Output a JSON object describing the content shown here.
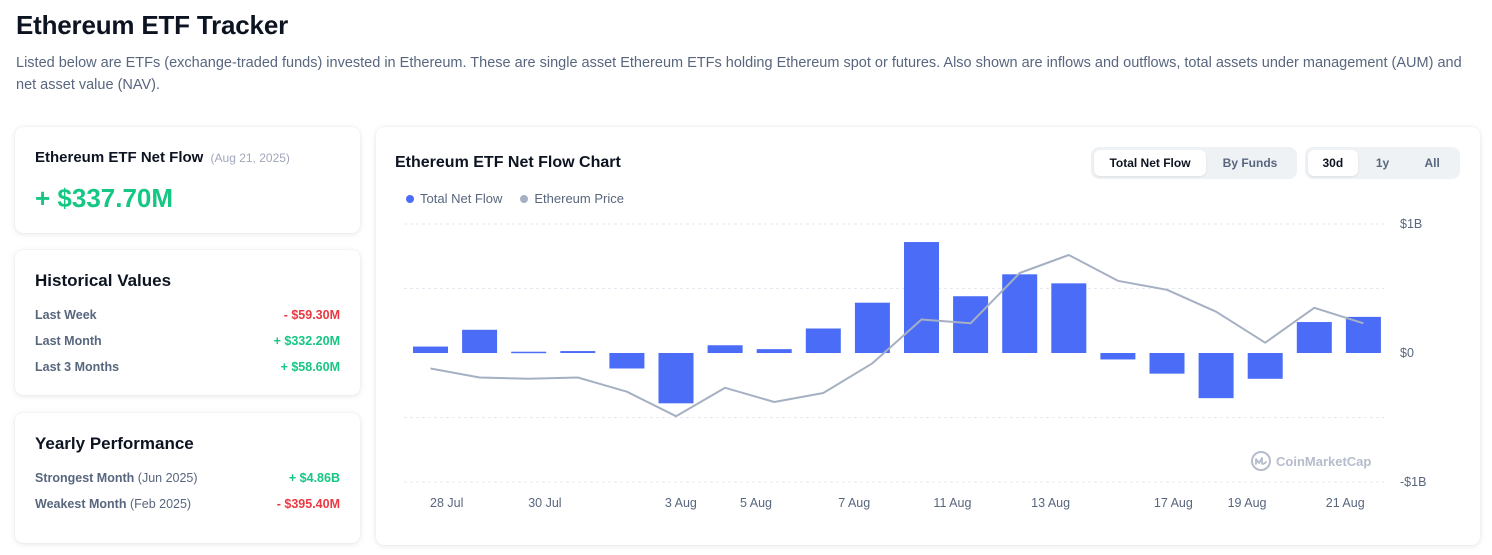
{
  "page": {
    "title": "Ethereum ETF Tracker",
    "description": "Listed below are ETFs (exchange-traded funds) invested in Ethereum. These are single asset Ethereum ETFs holding Ethereum spot or futures. Also shown are inflows and outflows, total assets under management (AUM) and net asset value (NAV)."
  },
  "net_flow": {
    "title": "Ethereum ETF Net Flow",
    "date": "(Aug 21, 2025)",
    "value": "+ $337.70M",
    "value_color": "#16c784"
  },
  "historical": {
    "title": "Historical Values",
    "rows": [
      {
        "label": "Last Week",
        "value": "- $59.30M",
        "trend": "negative"
      },
      {
        "label": "Last Month",
        "value": "+ $332.20M",
        "trend": "positive"
      },
      {
        "label": "Last 3 Months",
        "value": "+ $58.60M",
        "trend": "positive"
      }
    ]
  },
  "yearly": {
    "title": "Yearly Performance",
    "rows": [
      {
        "label": "Strongest Month",
        "sub": "(Jun 2025)",
        "value": "+ $4.86B",
        "trend": "positive"
      },
      {
        "label": "Weakest Month",
        "sub": "(Feb 2025)",
        "value": "- $395.40M",
        "trend": "negative"
      }
    ]
  },
  "chart_panel": {
    "title": "Ethereum ETF Net Flow Chart",
    "view_tabs": [
      "Total Net Flow",
      "By Funds"
    ],
    "view_active": "Total Net Flow",
    "range_tabs": [
      "30d",
      "1y",
      "All"
    ],
    "range_active": "30d",
    "watermark": "CoinMarketCap"
  },
  "colors": {
    "bar": "#4a6cf7",
    "price_line": "#a6b0c3",
    "positive": "#16c784",
    "negative": "#ea3943"
  },
  "chart_data": {
    "type": "bar",
    "series": [
      {
        "name": "Total Net Flow",
        "kind": "bar",
        "color": "#4a6cf7",
        "values": [
          0.05,
          0.18,
          0.01,
          0.015,
          -0.12,
          -0.39,
          0.06,
          0.03,
          0.19,
          0.39,
          0.86,
          0.44,
          0.61,
          0.54,
          -0.05,
          -0.16,
          -0.35,
          -0.2,
          0.24,
          0.28
        ]
      },
      {
        "name": "Ethereum Price",
        "kind": "line",
        "color": "#a6b0c3",
        "values": [
          -0.12,
          -0.19,
          -0.2,
          -0.19,
          -0.3,
          -0.49,
          -0.27,
          -0.38,
          -0.31,
          -0.08,
          0.26,
          0.23,
          0.62,
          0.76,
          0.56,
          0.49,
          0.32,
          0.08,
          0.35,
          0.23
        ]
      }
    ],
    "x_tick_labels": [
      {
        "label": "28 Jul",
        "index": 0.33
      },
      {
        "label": "30 Jul",
        "index": 2.33
      },
      {
        "label": "3 Aug",
        "index": 5.1
      },
      {
        "label": "5 Aug",
        "index": 6.63
      },
      {
        "label": "7 Aug",
        "index": 8.63
      },
      {
        "label": "11 Aug",
        "index": 10.63
      },
      {
        "label": "13 Aug",
        "index": 12.63
      },
      {
        "label": "17 Aug",
        "index": 15.13
      },
      {
        "label": "19 Aug",
        "index": 16.63
      },
      {
        "label": "21 Aug",
        "index": 18.63
      }
    ],
    "y_tick_labels": [
      {
        "label": "$1B",
        "value": 1
      },
      {
        "label": "$0",
        "value": 0
      },
      {
        "label": "-$1B",
        "value": -1
      }
    ],
    "ylim": [
      -1,
      1
    ],
    "gridlines": [
      -0.5,
      0.5
    ],
    "legend_position": "top-left",
    "grid": true
  }
}
